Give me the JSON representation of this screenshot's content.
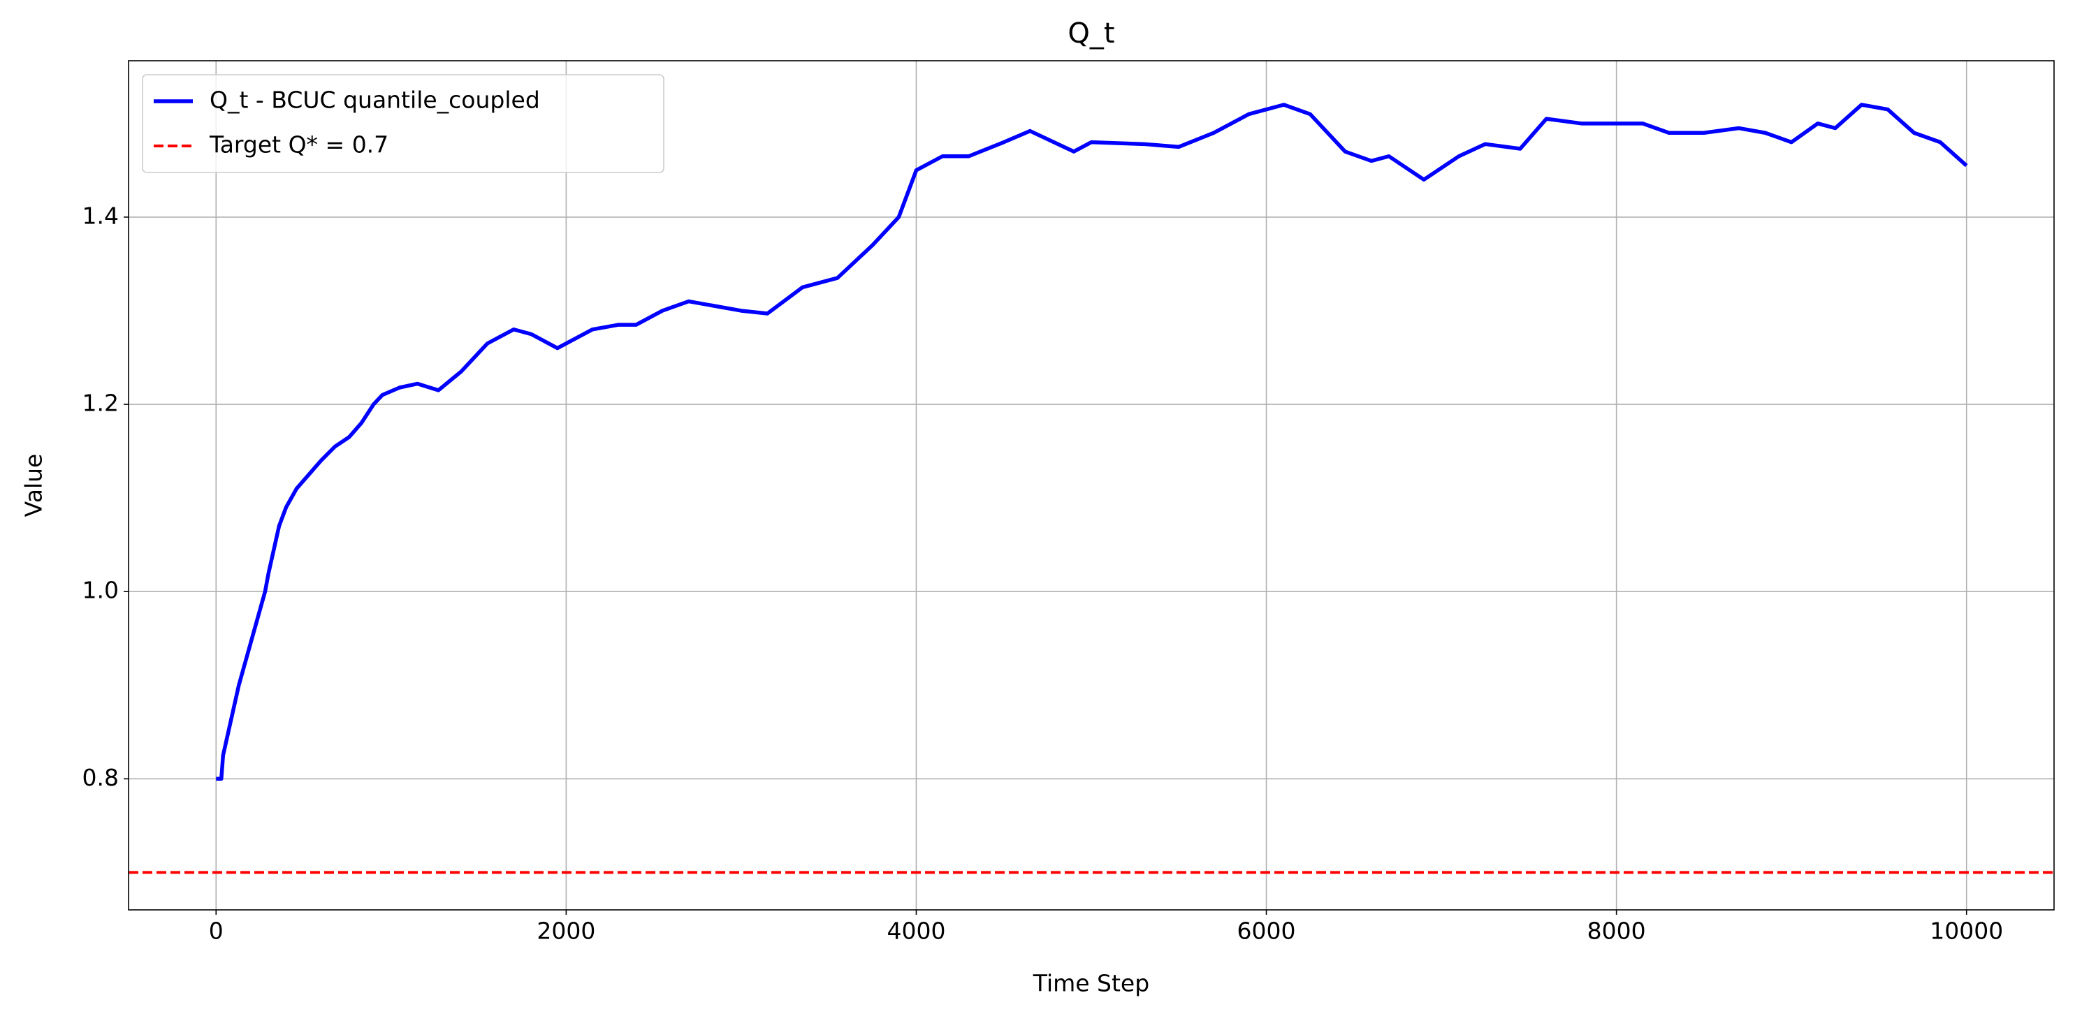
{
  "chart_data": {
    "type": "line",
    "title": "Q_t",
    "xlabel": "Time Step",
    "ylabel": "Value",
    "x": [
      0,
      30,
      40,
      70,
      100,
      130,
      160,
      190,
      220,
      250,
      280,
      300,
      330,
      360,
      400,
      460,
      530,
      600,
      680,
      760,
      830,
      900,
      950,
      1050,
      1150,
      1270,
      1400,
      1550,
      1700,
      1800,
      1950,
      2150,
      2300,
      2400,
      2550,
      2700,
      2850,
      3000,
      3150,
      3350,
      3550,
      3750,
      3900,
      4000,
      4150,
      4300,
      4500,
      4650,
      4900,
      5000,
      5300,
      5500,
      5700,
      5900,
      6100,
      6250,
      6450,
      6600,
      6700,
      6900,
      7100,
      7250,
      7450,
      7600,
      7800,
      8000,
      8150,
      8300,
      8500,
      8700,
      8850,
      9000,
      9150,
      9250,
      9400,
      9550,
      9700,
      9850,
      10000
    ],
    "series": [
      {
        "name": "Q_t - BCUC quantile_coupled",
        "color": "#0000ff",
        "values": [
          0.8,
          0.8,
          0.825,
          0.85,
          0.875,
          0.9,
          0.92,
          0.94,
          0.96,
          0.98,
          1.0,
          1.02,
          1.045,
          1.07,
          1.09,
          1.11,
          1.125,
          1.14,
          1.155,
          1.165,
          1.18,
          1.2,
          1.21,
          1.218,
          1.222,
          1.215,
          1.235,
          1.265,
          1.28,
          1.275,
          1.26,
          1.28,
          1.285,
          1.285,
          1.3,
          1.31,
          1.305,
          1.3,
          1.297,
          1.325,
          1.335,
          1.37,
          1.4,
          1.45,
          1.465,
          1.465,
          1.48,
          1.492,
          1.47,
          1.48,
          1.478,
          1.475,
          1.49,
          1.51,
          1.52,
          1.51,
          1.47,
          1.46,
          1.465,
          1.44,
          1.465,
          1.478,
          1.473,
          1.505,
          1.5,
          1.5,
          1.5,
          1.49,
          1.49,
          1.495,
          1.49,
          1.48,
          1.5,
          1.495,
          1.52,
          1.515,
          1.49,
          1.48,
          1.455
        ]
      }
    ],
    "hline": {
      "name": "Target Q* = 0.7",
      "value": 0.7,
      "color": "#ff0000",
      "dashed": true
    },
    "xlim": [
      -500,
      10500
    ],
    "ylim": [
      0.66,
      1.567
    ],
    "xticks": [
      0,
      2000,
      4000,
      6000,
      8000,
      10000
    ],
    "yticks": [
      0.8,
      {
        "value": 1,
        "label": "1.0"
      },
      1.2,
      1.4
    ],
    "grid": true,
    "legend": "upper left"
  }
}
